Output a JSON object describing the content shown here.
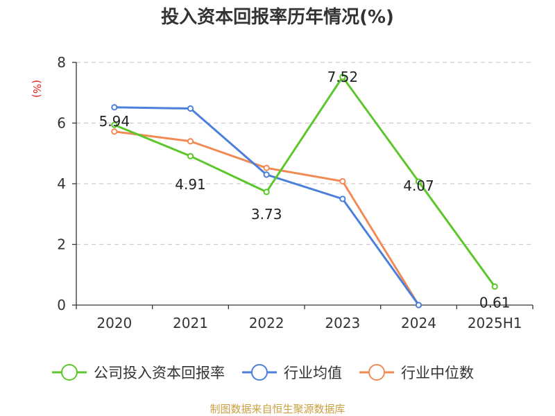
{
  "chart_data": {
    "type": "line",
    "title": "投入资本回报率历年情况(%)",
    "ylabel": "(%)",
    "xlabel": "",
    "categories": [
      "2020",
      "2021",
      "2022",
      "2023",
      "2024",
      "2025H1"
    ],
    "ylim": [
      0,
      8
    ],
    "yticks": [
      0,
      2,
      4,
      6,
      8
    ],
    "grid": true,
    "legend_position": "bottom",
    "series": [
      {
        "name": "公司投入资本回报率",
        "color": "#5bc72a",
        "values": [
          5.94,
          4.91,
          3.73,
          7.52,
          4.07,
          0.61
        ],
        "labels": [
          "5.94",
          "4.91",
          "3.73",
          "7.52",
          "4.07",
          "0.61"
        ]
      },
      {
        "name": "行业均值",
        "color": "#4a7fdc",
        "values": [
          6.52,
          6.48,
          4.3,
          3.5,
          0.0,
          null
        ]
      },
      {
        "name": "行业中位数",
        "color": "#f28a55",
        "values": [
          5.72,
          5.4,
          4.52,
          4.08,
          0.0,
          null
        ]
      }
    ],
    "source": "制图数据来自恒生聚源数据库"
  }
}
